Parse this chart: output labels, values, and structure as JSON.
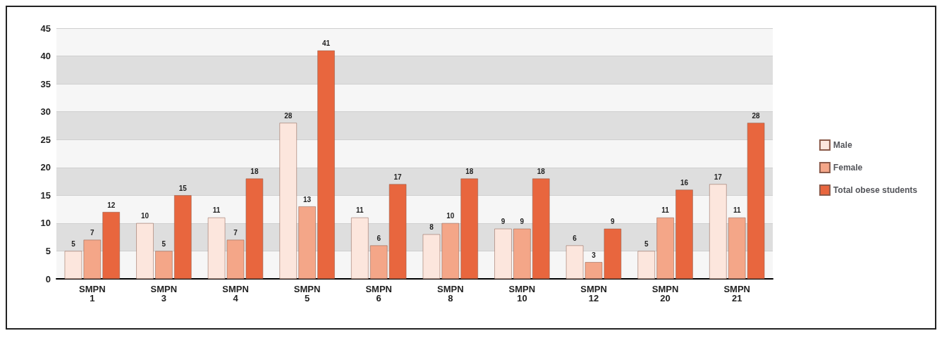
{
  "chart_data": {
    "type": "bar",
    "categories": [
      "SMPN 1",
      "SMPN 3",
      "SMPN 4",
      "SMPN 5",
      "SMPN 6",
      "SMPN 8",
      "SMPN 10",
      "SMPN 12",
      "SMPN 20",
      "SMPN 21"
    ],
    "series": [
      {
        "name": "Male",
        "color": "#fce6dd",
        "values": [
          5,
          10,
          11,
          28,
          11,
          8,
          9,
          6,
          5,
          17
        ]
      },
      {
        "name": "Female",
        "color": "#f4a688",
        "values": [
          7,
          5,
          7,
          13,
          6,
          10,
          9,
          3,
          11,
          11
        ]
      },
      {
        "name": "Total obese students",
        "color": "#e8663e",
        "values": [
          12,
          15,
          18,
          41,
          17,
          18,
          18,
          9,
          16,
          28
        ]
      }
    ],
    "ylim": [
      0,
      45
    ],
    "yticks": [
      0,
      5,
      10,
      15,
      20,
      25,
      30,
      35,
      40,
      45
    ],
    "grid": "y",
    "legend": "right",
    "data_labels": true
  }
}
